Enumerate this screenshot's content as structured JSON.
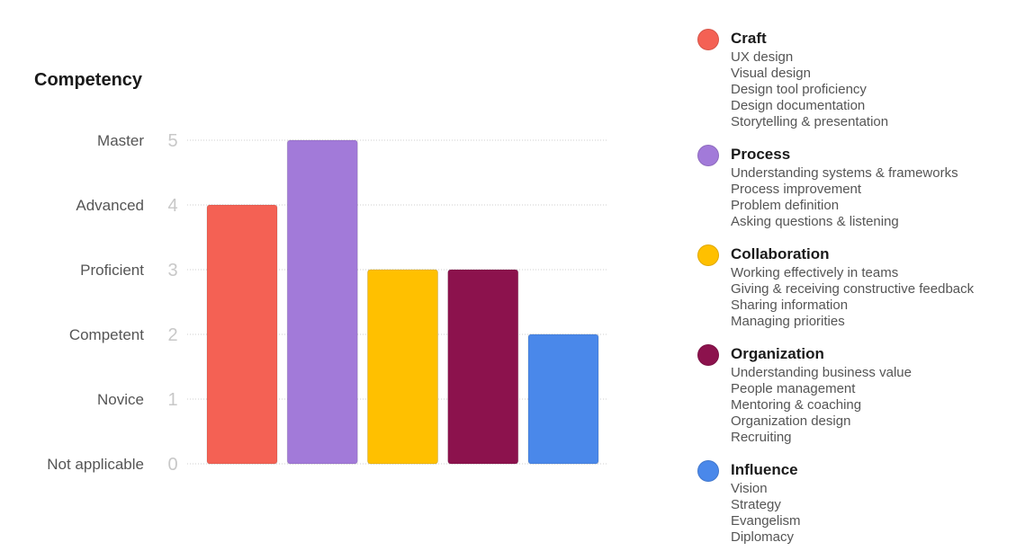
{
  "chart_data": {
    "type": "bar",
    "title": "Competency",
    "categories": [
      "Craft",
      "Process",
      "Collaboration",
      "Organization",
      "Influence"
    ],
    "values": [
      4,
      5,
      3,
      3,
      2
    ],
    "colors": [
      "#f46154",
      "#a27ad9",
      "#ffc000",
      "#8c124d",
      "#4a88ea"
    ],
    "ylim": [
      0,
      5
    ],
    "yticks": [
      "0",
      "1",
      "2",
      "3",
      "4",
      "5"
    ],
    "ylevels": [
      "Not applicable",
      "Novice",
      "Competent",
      "Proficient",
      "Advanced",
      "Master"
    ],
    "grid": true,
    "legend_placement": "right"
  },
  "legend": [
    {
      "title": "Craft",
      "color": "#f46154",
      "items": [
        "UX design",
        "Visual design",
        "Design tool proficiency",
        "Design documentation",
        "Storytelling & presentation"
      ]
    },
    {
      "title": "Process",
      "color": "#a27ad9",
      "items": [
        "Understanding systems & frameworks",
        "Process improvement",
        "Problem definition",
        "Asking questions & listening"
      ]
    },
    {
      "title": "Collaboration",
      "color": "#ffc000",
      "items": [
        "Working effectively in teams",
        "Giving & receiving constructive feedback",
        "Sharing information",
        "Managing priorities"
      ]
    },
    {
      "title": "Organization",
      "color": "#8c124d",
      "items": [
        "Understanding business value",
        "People management",
        "Mentoring & coaching",
        "Organization design",
        "Recruiting"
      ]
    },
    {
      "title": "Influence",
      "color": "#4a88ea",
      "items": [
        "Vision",
        "Strategy",
        "Evangelism",
        "Diplomacy"
      ]
    }
  ]
}
